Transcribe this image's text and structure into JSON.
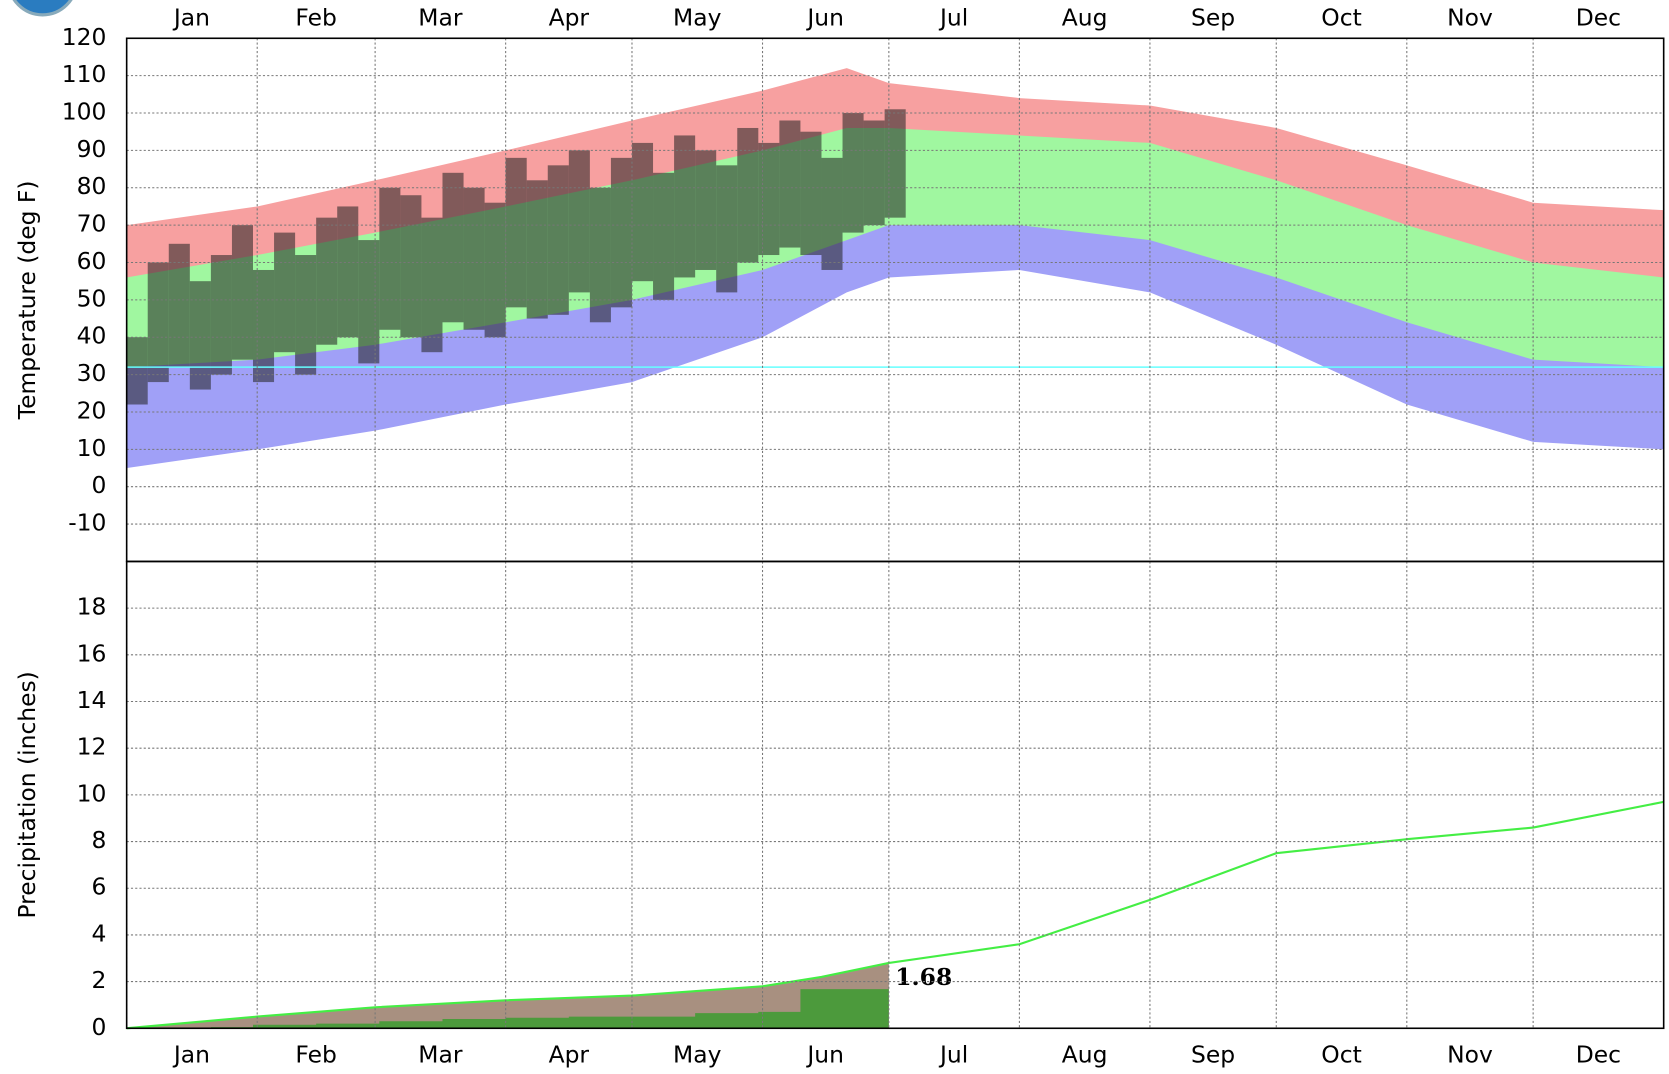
{
  "chart_data": [
    {
      "type": "area",
      "ylabel": "Temperature (deg F)",
      "categories": [
        "Jan",
        "Feb",
        "Mar",
        "Apr",
        "May",
        "Jun",
        "Jul",
        "Aug",
        "Sep",
        "Oct",
        "Nov",
        "Dec"
      ],
      "xlim": [
        0,
        365
      ],
      "xticks": [
        0,
        31,
        59,
        90,
        120,
        151,
        181,
        212,
        243,
        273,
        304,
        334,
        365
      ],
      "ylim": [
        -20,
        120
      ],
      "yticks": [
        -10,
        0,
        10,
        20,
        30,
        40,
        50,
        60,
        70,
        80,
        90,
        100,
        110,
        120
      ],
      "grid": true,
      "x": [
        0,
        31,
        59,
        90,
        120,
        151,
        171,
        181,
        212,
        243,
        273,
        304,
        334,
        365
      ],
      "series": [
        {
          "color": "#f7a0a0",
          "values": [
            70,
            75,
            82,
            90,
            98,
            106,
            112,
            108,
            104,
            102,
            96,
            86,
            76,
            74
          ]
        },
        {
          "color": "#a0f7a0",
          "values": [
            56,
            62,
            68,
            75,
            82,
            90,
            96,
            96,
            94,
            92,
            82,
            70,
            60,
            56
          ]
        },
        {
          "color": "#a0a0f7",
          "values": [
            32,
            34,
            38,
            44,
            50,
            58,
            66,
            70,
            70,
            66,
            56,
            44,
            34,
            32
          ]
        },
        {
          "color": "#ffffff",
          "values": [
            5,
            10,
            15,
            22,
            28,
            40,
            52,
            56,
            58,
            52,
            38,
            22,
            12,
            10
          ]
        }
      ],
      "bars": {
        "color": "#202020",
        "x": [
          0,
          5,
          10,
          15,
          20,
          25,
          30,
          35,
          40,
          45,
          50,
          55,
          60,
          65,
          70,
          75,
          80,
          85,
          90,
          95,
          100,
          105,
          110,
          115,
          120,
          125,
          130,
          135,
          140,
          145,
          150,
          155,
          160,
          165,
          170,
          175,
          180
        ],
        "high": [
          40,
          60,
          65,
          55,
          62,
          70,
          58,
          68,
          62,
          72,
          75,
          66,
          80,
          78,
          72,
          84,
          80,
          76,
          88,
          82,
          86,
          90,
          80,
          88,
          92,
          84,
          94,
          90,
          86,
          96,
          92,
          98,
          95,
          88,
          100,
          98,
          101
        ],
        "low": [
          22,
          28,
          32,
          26,
          30,
          34,
          28,
          36,
          30,
          38,
          40,
          33,
          42,
          40,
          36,
          44,
          42,
          40,
          48,
          45,
          46,
          52,
          44,
          48,
          55,
          50,
          56,
          58,
          52,
          60,
          62,
          64,
          62,
          58,
          68,
          70,
          72
        ]
      },
      "freeze_line": 32,
      "freeze_color": "#66ffff"
    },
    {
      "type": "line",
      "ylabel": "Precipitation (inches)",
      "categories": [
        "Jan",
        "Feb",
        "Mar",
        "Apr",
        "May",
        "Jun",
        "Jul",
        "Aug",
        "Sep",
        "Oct",
        "Nov",
        "Dec"
      ],
      "xlim": [
        0,
        365
      ],
      "xticks": [
        0,
        31,
        59,
        90,
        120,
        151,
        181,
        212,
        243,
        273,
        304,
        334,
        365
      ],
      "ylim": [
        0,
        20
      ],
      "yticks": [
        0,
        2,
        4,
        6,
        8,
        10,
        12,
        14,
        16,
        18
      ],
      "grid": true,
      "x": [
        0,
        31,
        59,
        90,
        120,
        151,
        165,
        181,
        212,
        243,
        273,
        304,
        334,
        365
      ],
      "series": [
        {
          "color": "#44ee44",
          "to_date_color": "#a89080",
          "values": [
            0,
            0.5,
            0.9,
            1.2,
            1.4,
            1.8,
            2.2,
            2.8,
            3.6,
            5.5,
            7.5,
            8.1,
            8.6,
            9.7
          ]
        }
      ],
      "observed": {
        "color": "#4c9a3c",
        "x": [
          0,
          20,
          30,
          45,
          60,
          75,
          90,
          105,
          120,
          135,
          150,
          160,
          181
        ],
        "values": [
          0,
          0.05,
          0.15,
          0.2,
          0.3,
          0.4,
          0.45,
          0.5,
          0.5,
          0.65,
          0.7,
          1.68,
          1.68
        ]
      }
    }
  ]
}
